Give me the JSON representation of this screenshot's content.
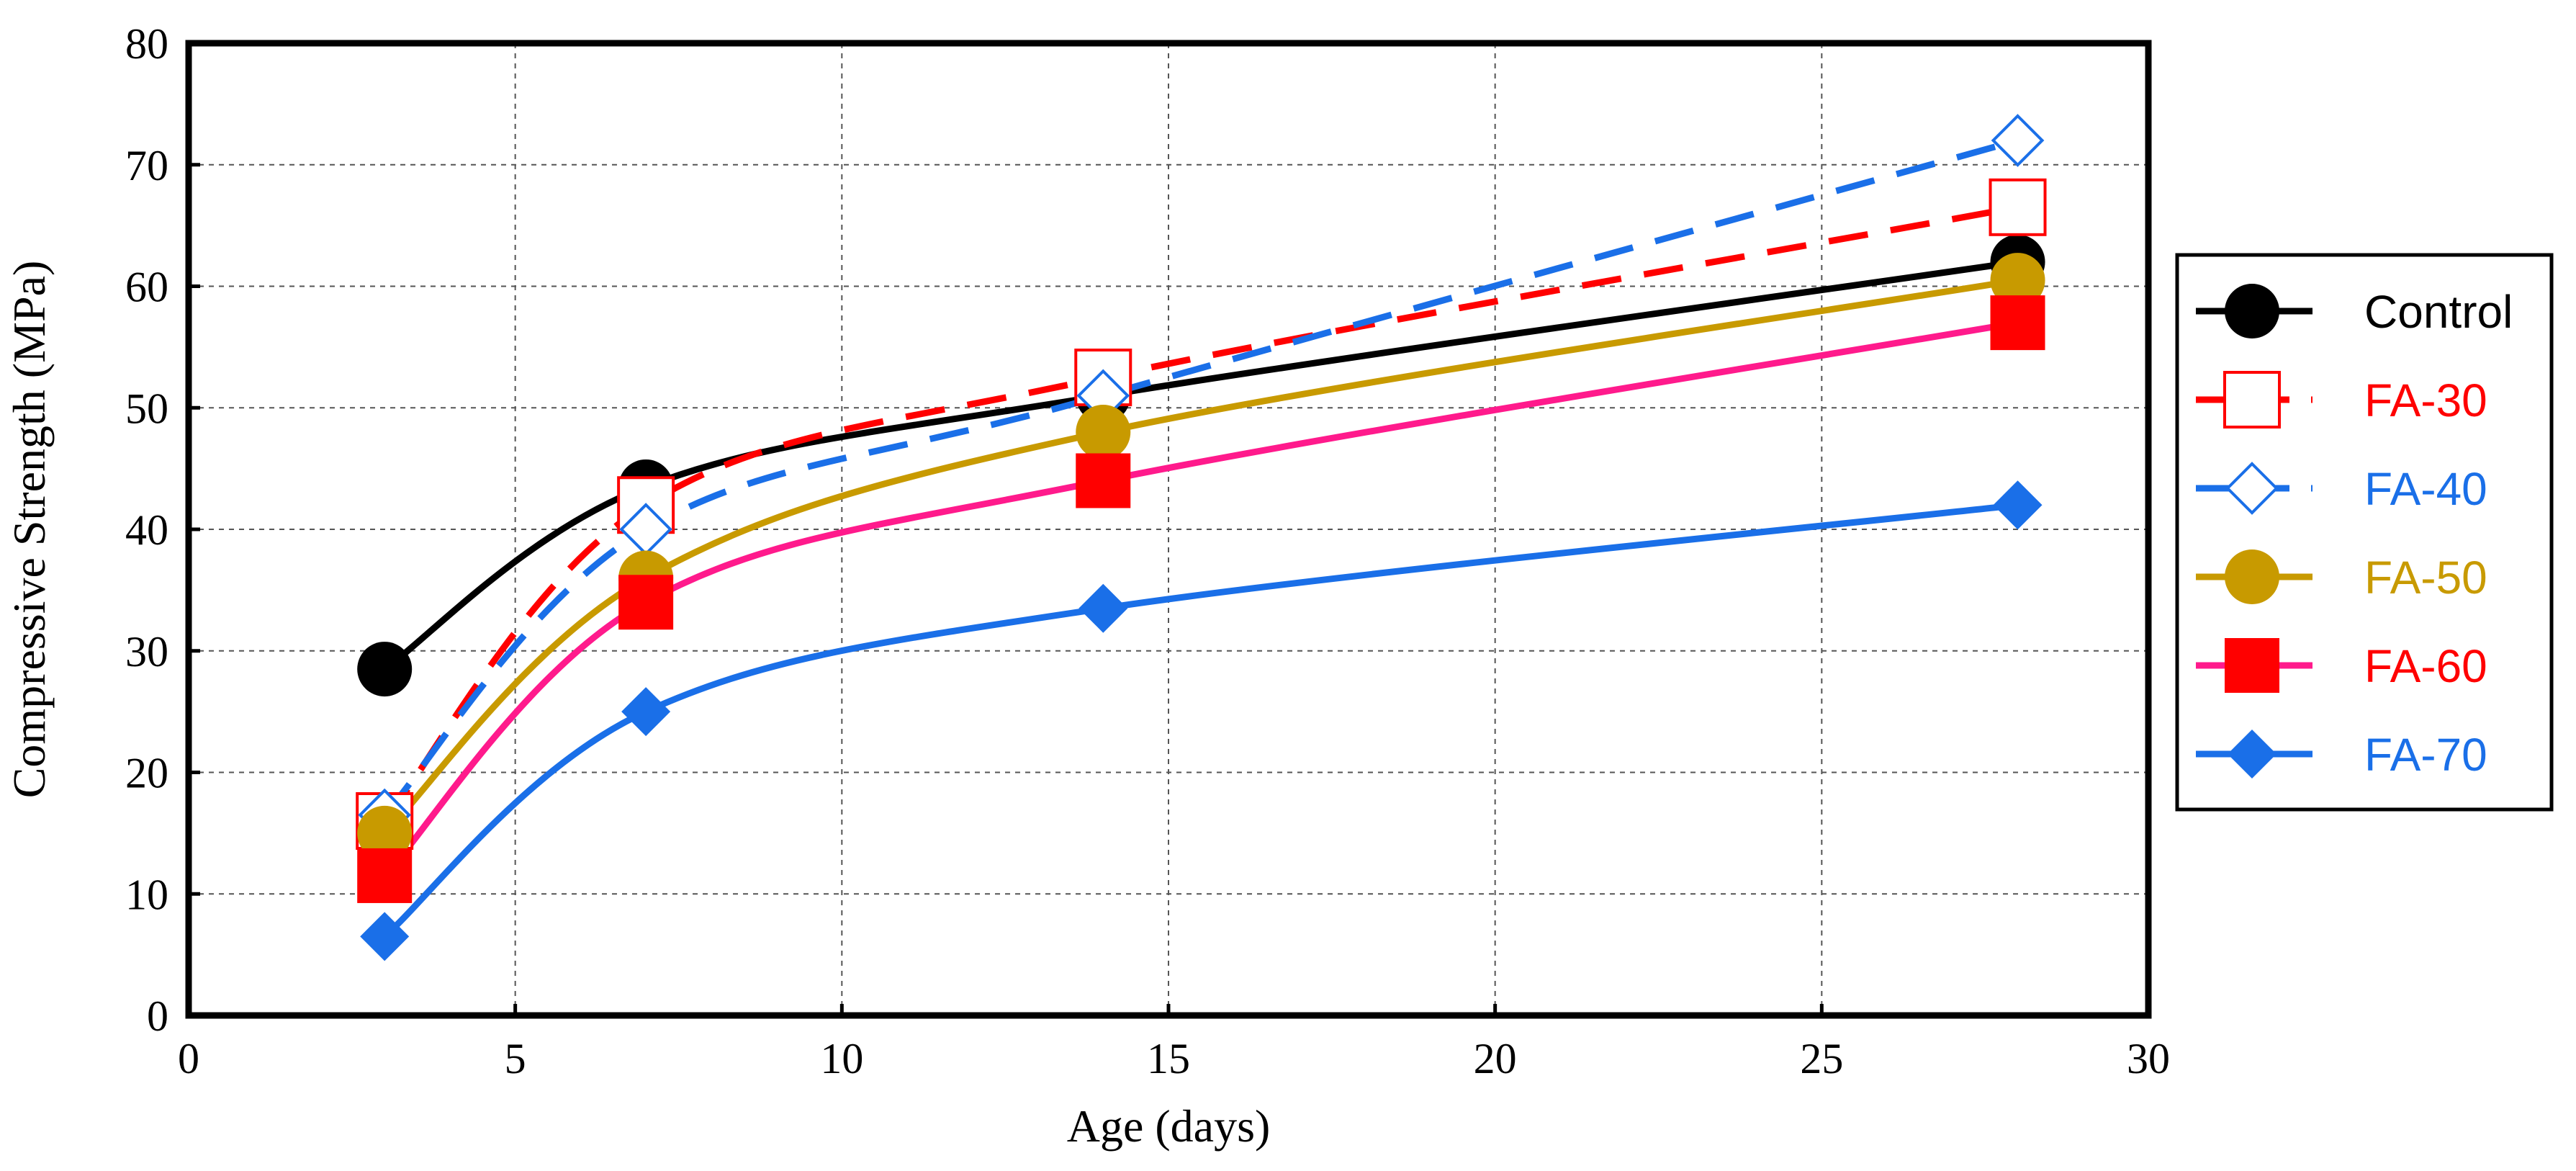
{
  "chart_data": {
    "type": "line",
    "title": "",
    "xlabel": "Age (days)",
    "ylabel": "Compressive Strength (MPa)",
    "xlim": [
      0,
      30
    ],
    "ylim": [
      0,
      80
    ],
    "xticks": [
      0,
      5,
      10,
      15,
      20,
      25,
      30
    ],
    "yticks": [
      0,
      10,
      20,
      30,
      40,
      50,
      60,
      70,
      80
    ],
    "x_tick_labels": [
      "0",
      "5",
      "10",
      "15",
      "20",
      "25",
      "30"
    ],
    "y_tick_labels": [
      "0",
      "10",
      "20",
      "30",
      "40",
      "50",
      "60",
      "70",
      "80"
    ],
    "grid": true,
    "legend_position": "right",
    "x": [
      3,
      7,
      14,
      28
    ],
    "series": [
      {
        "name": "Control",
        "values": [
          28.5,
          43.5,
          51,
          62
        ],
        "color": "#000000",
        "marker": "circle",
        "filled": true,
        "dashed": false
      },
      {
        "name": "FA-30",
        "values": [
          16,
          42,
          52.5,
          66.5
        ],
        "color": "#ff0000",
        "marker": "square",
        "filled": false,
        "dashed": true
      },
      {
        "name": "FA-40",
        "values": [
          16.5,
          40,
          51,
          72
        ],
        "color": "#1a6fe8",
        "marker": "diamond",
        "filled": false,
        "dashed": true
      },
      {
        "name": "FA-50",
        "values": [
          15,
          36,
          48,
          60.5
        ],
        "color": "#c89a00",
        "marker": "circle",
        "filled": true,
        "dashed": false
      },
      {
        "name": "FA-60",
        "values": [
          11.5,
          34,
          44,
          57
        ],
        "color": "#ff0000",
        "line_color": "#ff1a8c",
        "marker": "square",
        "filled": true,
        "dashed": false
      },
      {
        "name": "FA-70",
        "values": [
          6.5,
          25,
          33.5,
          42
        ],
        "color": "#1a6fe8",
        "marker": "diamond",
        "filled": true,
        "dashed": false
      }
    ]
  }
}
